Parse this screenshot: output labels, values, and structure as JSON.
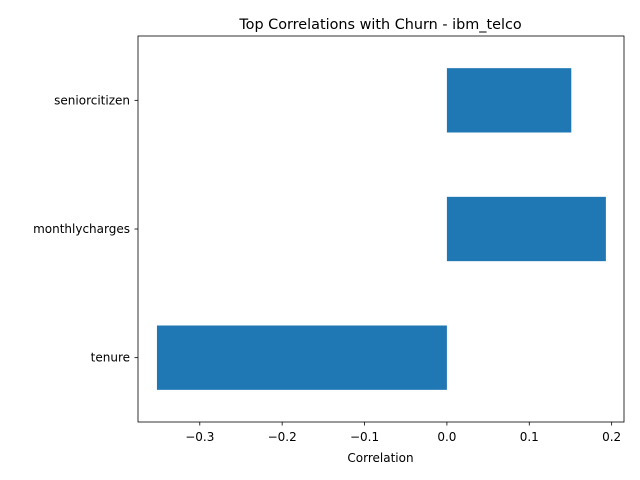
{
  "chart_data": {
    "type": "bar",
    "orientation": "horizontal",
    "title": "Top Correlations with Churn - ibm_telco",
    "xlabel": "Correlation",
    "ylabel": "",
    "categories": [
      "tenure",
      "monthlycharges",
      "seniorcitizen"
    ],
    "values": [
      -0.352,
      0.193,
      0.151
    ],
    "xlim": [
      -0.375,
      0.215
    ],
    "xticks": [
      -0.3,
      -0.2,
      -0.1,
      0.0,
      0.1,
      0.2
    ],
    "xtick_labels": [
      "−0.3",
      "−0.2",
      "−0.1",
      "0.0",
      "0.1",
      "0.2"
    ],
    "bar_color": "#1f77b4",
    "grid": false,
    "legend": "none"
  }
}
